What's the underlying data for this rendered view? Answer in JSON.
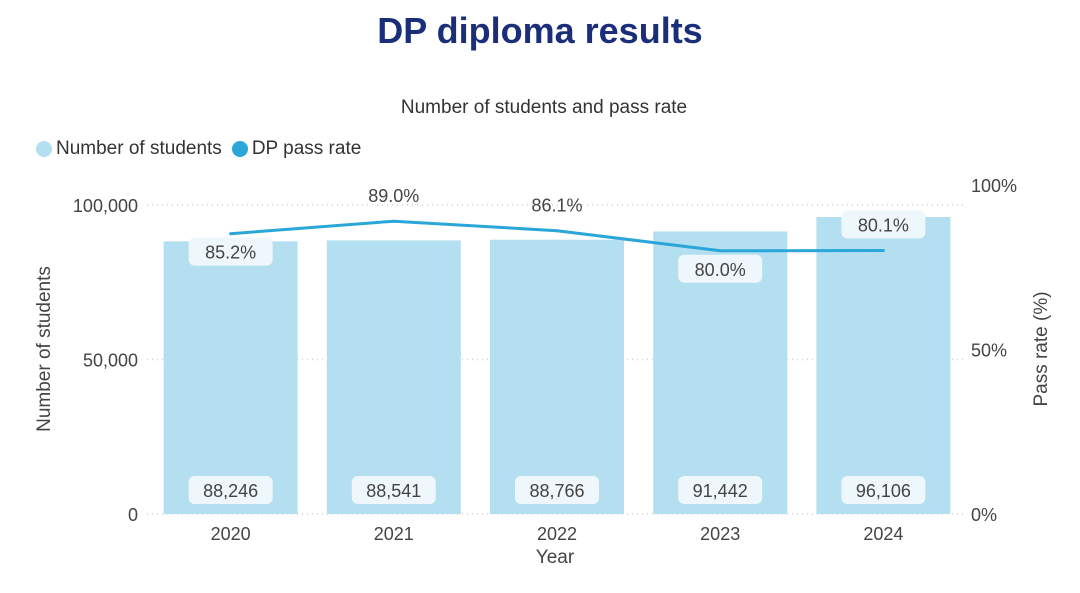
{
  "title": "DP diploma results",
  "chart_data": {
    "type": "bar",
    "title": "Number of students and pass rate",
    "categories": [
      "2020",
      "2021",
      "2022",
      "2023",
      "2024"
    ],
    "series": [
      {
        "name": "Number of students",
        "type": "bar",
        "axis": "left",
        "values": [
          88246,
          88541,
          88766,
          91442,
          96106
        ],
        "labels": [
          "88,246",
          "88,541",
          "88,766",
          "91,442",
          "96,106"
        ]
      },
      {
        "name": "DP pass rate",
        "type": "line",
        "axis": "right",
        "values": [
          85.2,
          89.0,
          86.1,
          80.0,
          80.1
        ],
        "labels": [
          "85.2%",
          "89.0%",
          "86.1%",
          "80.0%",
          "80.1%"
        ]
      }
    ],
    "xlabel": "Year",
    "ylabel": "Number of students",
    "y2label": "Pass rate (%)",
    "ylim": [
      0,
      100000
    ],
    "y2lim": [
      0,
      100
    ],
    "yticks": [
      "0",
      "50,000",
      "100,000"
    ],
    "y2ticks": [
      "0%",
      "50%",
      "100%"
    ],
    "legend_position": "top-left",
    "grid": true
  },
  "colors": {
    "title": "#1b2e7a",
    "bar": "#b3dff0",
    "line": "#2aa6d8",
    "grid": "#d0d0d0"
  }
}
